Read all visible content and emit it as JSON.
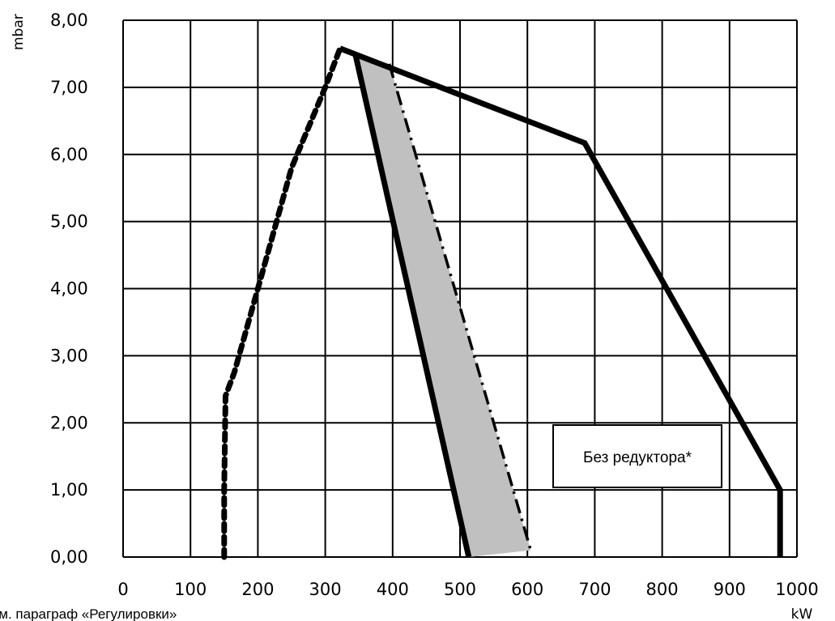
{
  "chart_data": {
    "type": "line",
    "title": "",
    "xlabel": "kW",
    "ylabel": "mbar",
    "xlim": [
      0,
      1000
    ],
    "ylim": [
      0,
      8
    ],
    "grid": true,
    "x_ticks": [
      "0",
      "100",
      "200",
      "300",
      "400",
      "500",
      "600",
      "700",
      "800",
      "900",
      "1000"
    ],
    "y_ticks": [
      "0,00",
      "1,00",
      "2,00",
      "3,00",
      "4,00",
      "5,00",
      "6,00",
      "7,00",
      "8,00"
    ],
    "annotation": "Без редуктора*",
    "footnote": "См. параграф «Регулировки»",
    "series": [
      {
        "style": "solid",
        "color": "#000000",
        "x": [
          322,
          685,
          975,
          975
        ],
        "y": [
          7.58,
          6.17,
          1.0,
          0.0
        ]
      },
      {
        "style": "dotted",
        "color": "#000000",
        "x": [
          150,
          150,
          152,
          165,
          200,
          250,
          300,
          322
        ],
        "y": [
          0.0,
          1.0,
          2.4,
          2.75,
          4.0,
          5.8,
          7.0,
          7.58
        ]
      },
      {
        "style": "solid",
        "color": "#000000",
        "x": [
          345,
          513
        ],
        "y": [
          7.48,
          0.0
        ]
      },
      {
        "style": "dash-dot",
        "color": "#000000",
        "x": [
          395,
          605
        ],
        "y": [
          7.35,
          0.1
        ]
      }
    ],
    "shaded_region": {
      "color": "#c0c0c0",
      "x": [
        345,
        395,
        605,
        513
      ],
      "y": [
        7.48,
        7.35,
        0.1,
        0.0
      ]
    }
  }
}
